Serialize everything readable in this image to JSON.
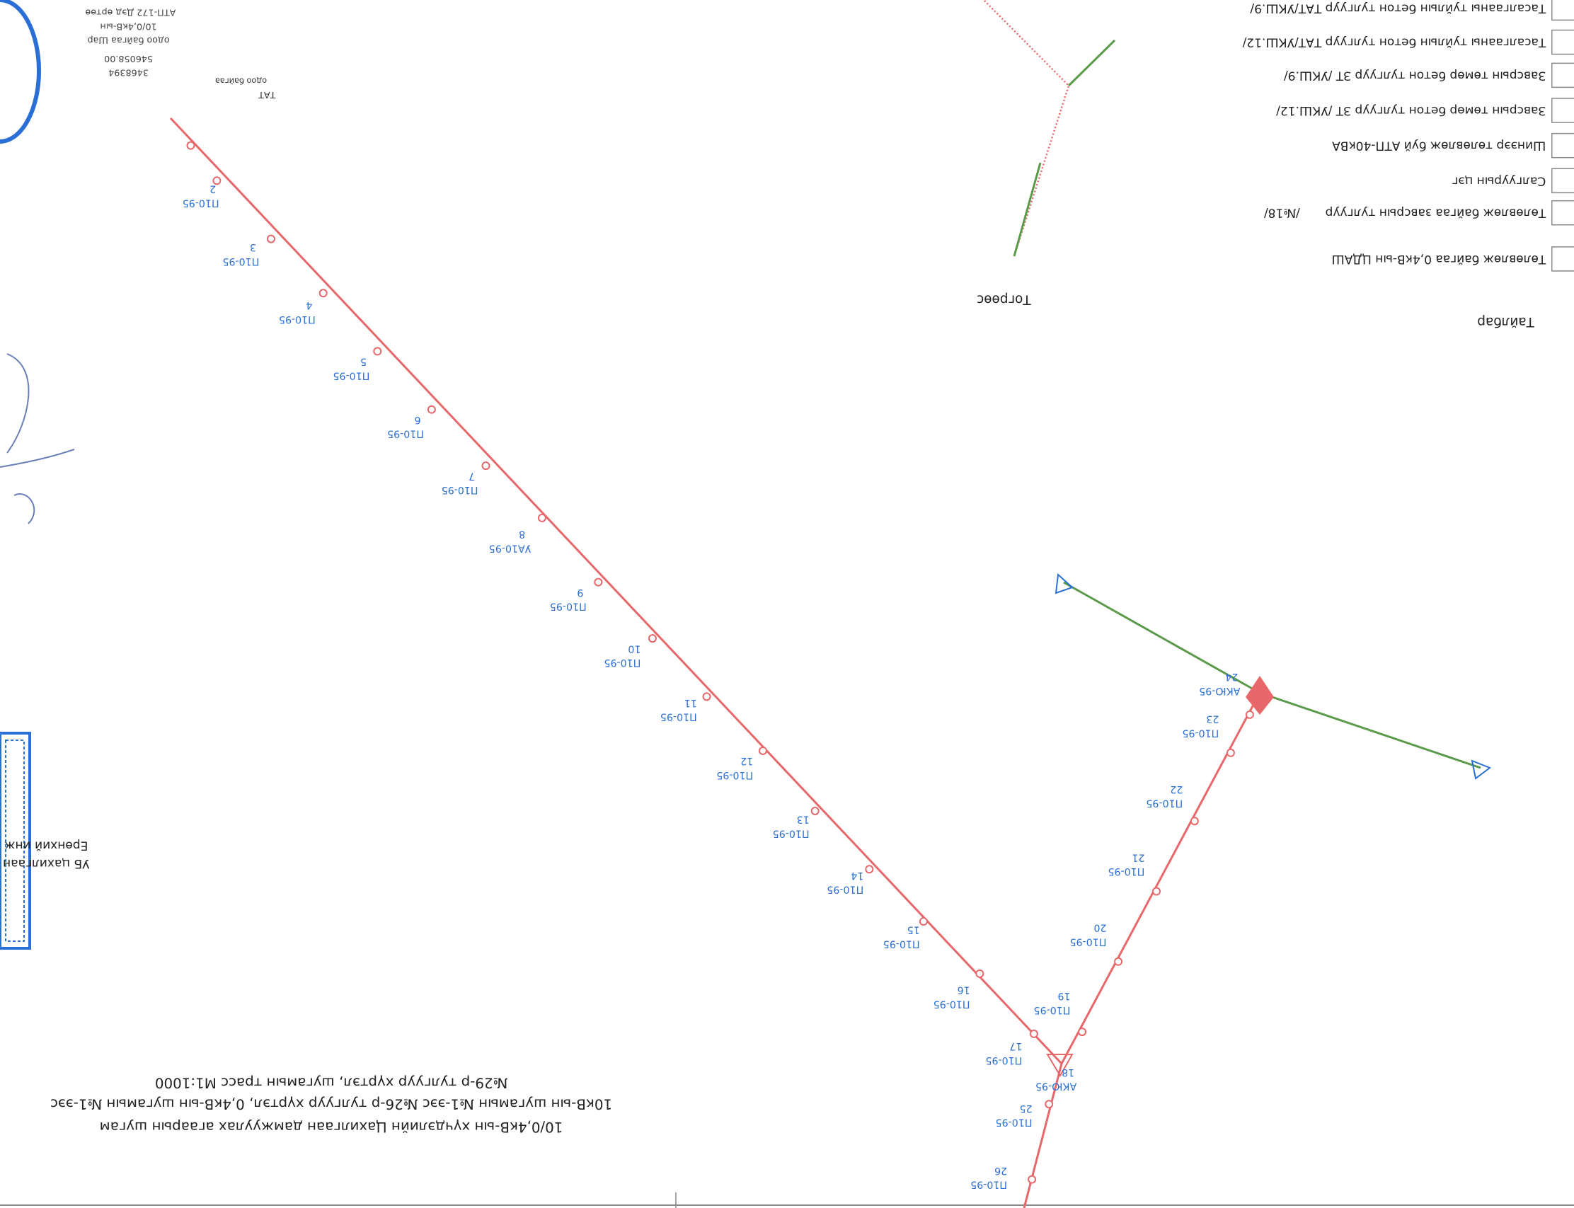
{
  "title": {
    "lines": [
      "10/0,4кВ-ын хүчдэлийн Цахилгаан дамжуулах агаарын шугам",
      "10кВ-ын шугамын №1-ээс №26-р тулгуур хүртэл, 0,4кВ-ын шугамын №1-ээс",
      "№29-р тулгуур хүртэл, шугамын трасс М1:1000"
    ]
  },
  "legend": {
    "heading": "Тайлбар",
    "items": [
      "Төлөвлөж байгаа 0,4кВ-ын ЦДАШ",
      "Төлөвлөж байгаа завсрын тулгуур",
      "Салгуурын цэг",
      "Шинээр төлөвлөж буй АТП-40кВА",
      "Завсрын төмөр бетон тулгуур ЗТ /УКШ.12/",
      "Завсрын төмөр бетон тулгуур ЗТ /УКШ.9/",
      "Тасалгааны туйлын бетон тулгуур ТАТ/УКШ.12/",
      "Тасалгааны туйлын бетон тулгуур ТАТ/УКШ.9/"
    ],
    "note": "/№18/"
  },
  "direction": "Тогрөөс",
  "substation": {
    "lines": [
      "АТП-172 Дэд өртөө",
      "10/0,4кВ-ын",
      "одоо байгаа Шар",
      "546058.00",
      "3468394"
    ],
    "tat": "ТАТ",
    "existing": "одоо байгаа"
  },
  "stamp": [
    "УБ цахилгаан",
    "Ерөнхий инж"
  ],
  "poles": [
    {
      "number": "2",
      "type": "П10-95"
    },
    {
      "number": "3",
      "type": "П10-95"
    },
    {
      "number": "4",
      "type": "П10-95"
    },
    {
      "number": "5",
      "type": "П10-95"
    },
    {
      "number": "6",
      "type": "П10-95"
    },
    {
      "number": "7",
      "type": "П10-95"
    },
    {
      "number": "8",
      "type": "УА10-95"
    },
    {
      "number": "9",
      "type": "П10-95"
    },
    {
      "number": "10",
      "type": "П10-95"
    },
    {
      "number": "11",
      "type": "П10-95"
    },
    {
      "number": "12",
      "type": "П10-95"
    },
    {
      "number": "13",
      "type": "П10-95"
    },
    {
      "number": "14",
      "type": "П10-95"
    },
    {
      "number": "15",
      "type": "П10-95"
    },
    {
      "number": "16",
      "type": "П10-95"
    },
    {
      "number": "17",
      "type": "П10-95"
    },
    {
      "number": "18",
      "type": "АКЮ-95"
    },
    {
      "number": "19",
      "type": "П10-95"
    },
    {
      "number": "20",
      "type": "П10-95"
    },
    {
      "number": "21",
      "type": "П10-95"
    },
    {
      "number": "22",
      "type": "П10-95"
    },
    {
      "number": "23",
      "type": "П10-95"
    },
    {
      "number": "24",
      "type": "АКЮ-95"
    },
    {
      "number": "25",
      "type": "П10-95"
    },
    {
      "number": "26",
      "type": "П10-95"
    }
  ]
}
